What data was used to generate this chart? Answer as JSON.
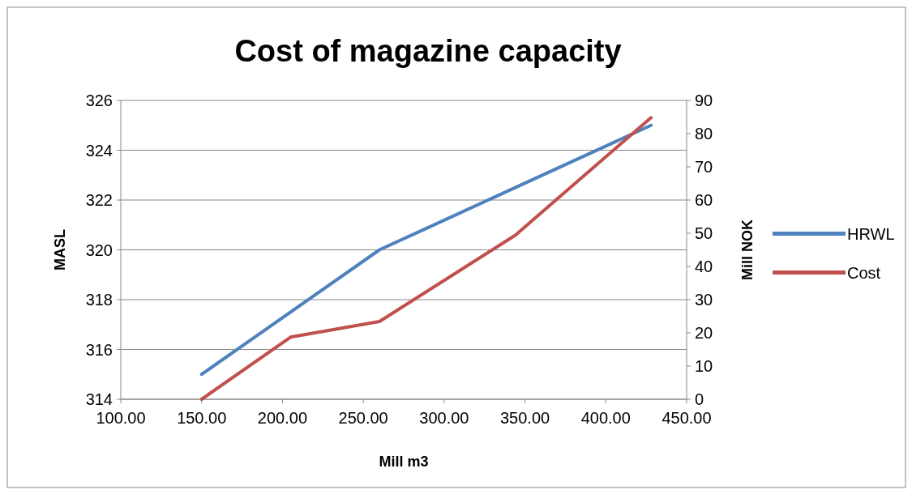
{
  "chart_data": {
    "type": "line",
    "title": "Cost of magazine capacity",
    "xlabel": "Mill m3",
    "ylabel": "MASL",
    "y2label": "Mill NOK",
    "x": [
      150,
      205,
      260,
      344,
      428
    ],
    "series": [
      {
        "name": "HRWL",
        "color": "#4f81bd",
        "values": [
          315,
          317.5,
          320,
          322.5,
          325
        ]
      },
      {
        "name": "Cost",
        "color": "#c0504d",
        "values": [
          0,
          18.7,
          23.4,
          49.4,
          84.8
        ],
        "axis": "y2"
      }
    ],
    "xlim": [
      100,
      450
    ],
    "xticks": [
      {
        "value": 100,
        "label": "100.00"
      },
      {
        "value": 150,
        "label": "150.00"
      },
      {
        "value": 200,
        "label": "200.00"
      },
      {
        "value": 250,
        "label": "250.00"
      },
      {
        "value": 300,
        "label": "300.00"
      },
      {
        "value": 350,
        "label": "350.00"
      },
      {
        "value": 400,
        "label": "400.00"
      },
      {
        "value": 450,
        "label": "450.00"
      }
    ],
    "ylim": [
      314,
      326
    ],
    "yticks": [
      314,
      316,
      318,
      320,
      322,
      324,
      326
    ],
    "y2lim": [
      0,
      90
    ],
    "y2ticks": [
      0,
      10,
      20,
      30,
      40,
      50,
      60,
      70,
      80,
      90
    ],
    "grid": "y",
    "legend": "right",
    "marker": "none",
    "line_style": "solid"
  }
}
